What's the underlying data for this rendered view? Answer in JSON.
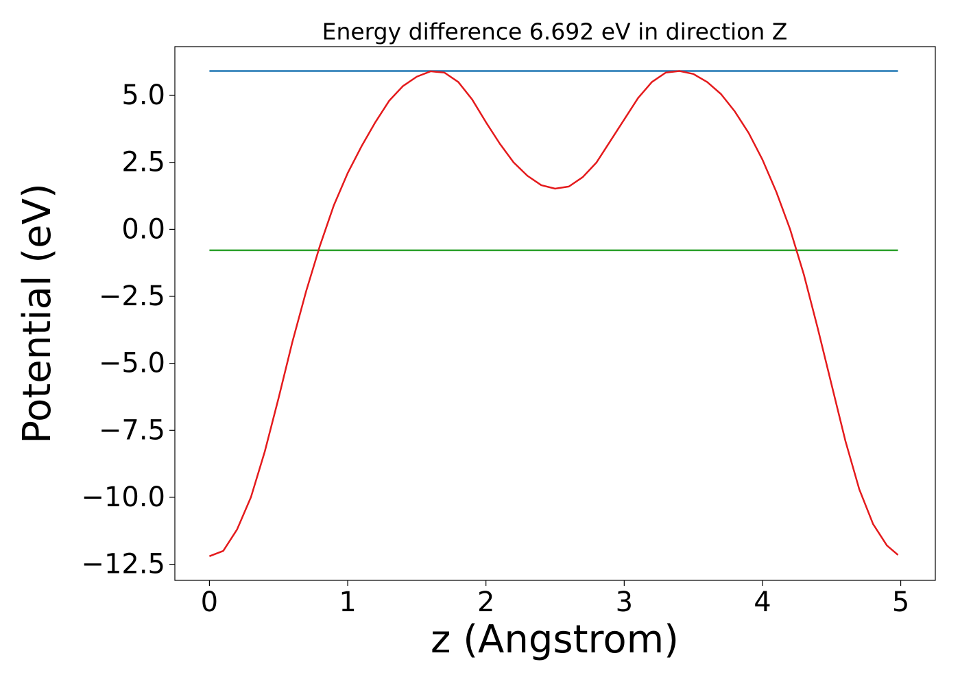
{
  "chart_data": {
    "type": "line",
    "title": "Energy difference 6.692 eV in direction Z",
    "xlabel": "z (Angstrom)",
    "ylabel": "Potential (eV)",
    "xlim": [
      -0.25,
      5.25
    ],
    "ylim": [
      -13.1,
      6.82
    ],
    "xticks": [
      0,
      1,
      2,
      3,
      4,
      5
    ],
    "yticks": [
      {
        "value": 5,
        "label": "5.0"
      },
      {
        "value": 2.5,
        "label": "2.5"
      },
      {
        "value": 0,
        "label": "0.0"
      },
      {
        "value": -2.5,
        "label": "−2.5"
      },
      {
        "value": -5,
        "label": "−5.0"
      },
      {
        "value": -7.5,
        "label": "−7.5"
      },
      {
        "value": -10,
        "label": "−10.0"
      },
      {
        "value": -12.5,
        "label": "−12.5"
      }
    ],
    "series": [
      {
        "color": "#1f77b4",
        "x": [
          0,
          4.98
        ],
        "values": [
          5.91,
          5.91
        ]
      },
      {
        "color": "#2ca02c",
        "x": [
          0,
          4.98
        ],
        "values": [
          -0.782,
          -0.782
        ]
      },
      {
        "color": "#e41a1c",
        "x": [
          0,
          0.1,
          0.2,
          0.3,
          0.4,
          0.5,
          0.6,
          0.7,
          0.8,
          0.9,
          1.0,
          1.1,
          1.2,
          1.3,
          1.4,
          1.5,
          1.6,
          1.7,
          1.8,
          1.9,
          2.0,
          2.1,
          2.2,
          2.3,
          2.4,
          2.5,
          2.6,
          2.7,
          2.8,
          2.9,
          3.0,
          3.1,
          3.2,
          3.3,
          3.4,
          3.5,
          3.6,
          3.7,
          3.8,
          3.9,
          4.0,
          4.1,
          4.2,
          4.3,
          4.4,
          4.5,
          4.6,
          4.7,
          4.8,
          4.9,
          4.98
        ],
        "values": [
          -12.2,
          -12.0,
          -11.2,
          -10.0,
          -8.3,
          -6.3,
          -4.2,
          -2.3,
          -0.6,
          0.9,
          2.1,
          3.1,
          4.0,
          4.8,
          5.35,
          5.7,
          5.9,
          5.85,
          5.5,
          4.85,
          4.0,
          3.2,
          2.5,
          2.0,
          1.65,
          1.52,
          1.6,
          1.95,
          2.5,
          3.3,
          4.1,
          4.9,
          5.5,
          5.85,
          5.91,
          5.8,
          5.5,
          5.05,
          4.4,
          3.6,
          2.6,
          1.4,
          0.0,
          -1.7,
          -3.7,
          -5.8,
          -7.9,
          -9.7,
          -11.0,
          -11.8,
          -12.15
        ]
      }
    ]
  }
}
